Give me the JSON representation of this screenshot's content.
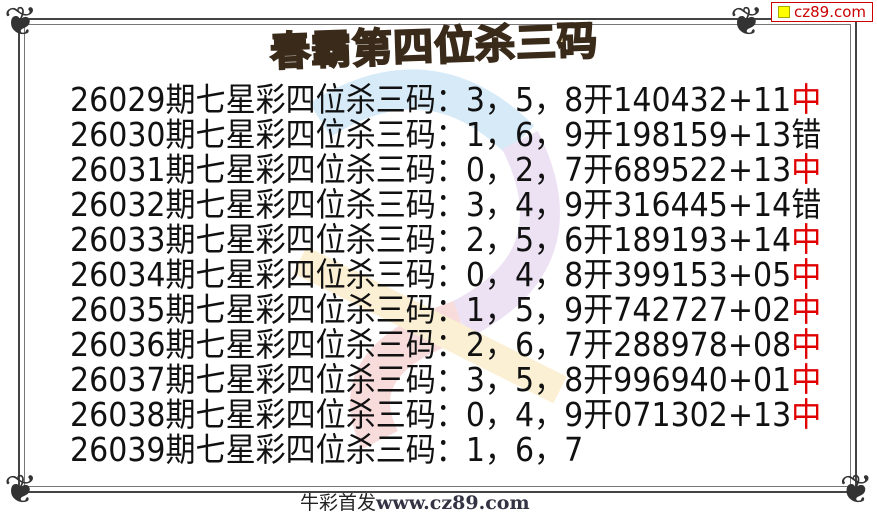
{
  "title": "春霸第四位杀三码",
  "badge": "cz89.com",
  "rows": [
    {
      "period": "26029期七星彩四位杀三码：",
      "kill": "3，5，8",
      "open": "开140432+11",
      "result": "中",
      "hit": true
    },
    {
      "period": "26030期七星彩四位杀三码：",
      "kill": "1，6，9",
      "open": "开198159+13",
      "result": "错",
      "hit": false
    },
    {
      "period": "26031期七星彩四位杀三码：",
      "kill": "0，2，7",
      "open": "开689522+13",
      "result": "中",
      "hit": true
    },
    {
      "period": "26032期七星彩四位杀三码：",
      "kill": "3，4，9",
      "open": "开316445+14",
      "result": "错",
      "hit": false
    },
    {
      "period": "26033期七星彩四位杀三码：",
      "kill": "2，5，6",
      "open": "开189193+14",
      "result": "中",
      "hit": true
    },
    {
      "period": "26034期七星彩四位杀三码：",
      "kill": "0，4，8",
      "open": "开399153+05",
      "result": "中",
      "hit": true
    },
    {
      "period": "26035期七星彩四位杀三码：",
      "kill": "1，5，9",
      "open": "开742727+02",
      "result": "中",
      "hit": true
    },
    {
      "period": "26036期七星彩四位杀三码：",
      "kill": "2，6，7",
      "open": "开288978+08",
      "result": "中",
      "hit": true
    },
    {
      "period": "26037期七星彩四位杀三码：",
      "kill": "3，5，8",
      "open": "开996940+01",
      "result": "中",
      "hit": true
    },
    {
      "period": "26038期七星彩四位杀三码：",
      "kill": "0，4，9",
      "open": "开071302+13",
      "result": "中",
      "hit": true
    },
    {
      "period": "26039期七星彩四位杀三码：",
      "kill": "1，6，7",
      "open": "",
      "result": "",
      "hit": false
    }
  ],
  "footer": {
    "label": "牛彩首发",
    "url": "www.cz89.com"
  },
  "colors": {
    "hit": "#e00000",
    "text": "#111111"
  }
}
